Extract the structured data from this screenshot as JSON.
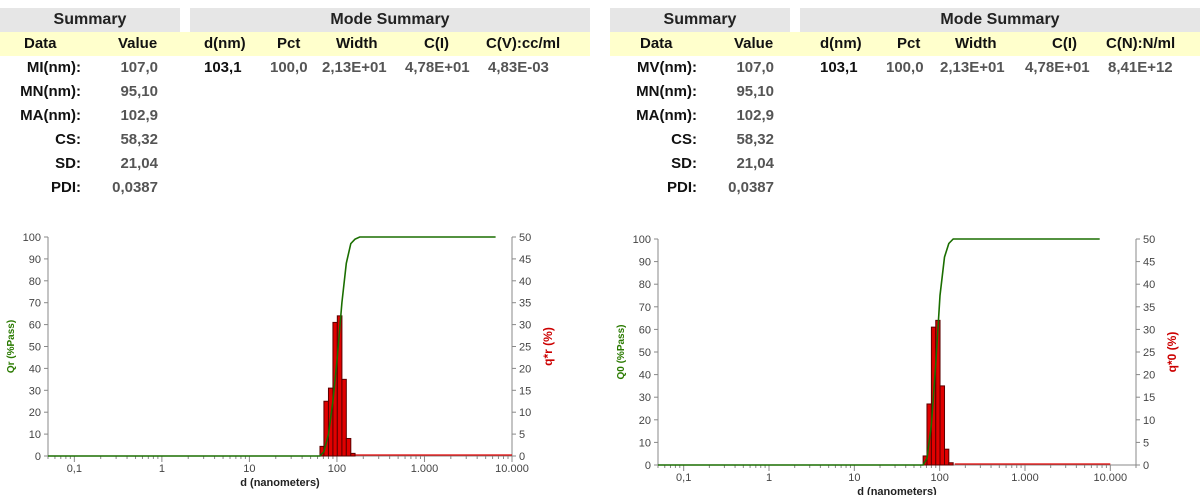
{
  "panels": [
    {
      "summary_title": "Summary",
      "mode_title": "Mode Summary",
      "headers": {
        "data": "Data",
        "value": "Value",
        "d": "d(nm)",
        "pct": "Pct",
        "width": "Width",
        "ci": "C(I)",
        "conc": "C(V):cc/ml"
      },
      "summary_rows": [
        {
          "label": "MI(nm):",
          "value": "107,0"
        },
        {
          "label": "MN(nm):",
          "value": "95,10"
        },
        {
          "label": "MA(nm):",
          "value": "102,9"
        },
        {
          "label": "CS:",
          "value": "58,32"
        },
        {
          "label": "SD:",
          "value": "21,04"
        },
        {
          "label": "PDI:",
          "value": "0,0387"
        }
      ],
      "mode_row": {
        "d": "103,1",
        "pct": "100,0",
        "width": "2,13E+01",
        "ci": "4,78E+01",
        "conc": "4,83E-03"
      }
    },
    {
      "summary_title": "Summary",
      "mode_title": "Mode Summary",
      "headers": {
        "data": "Data",
        "value": "Value",
        "d": "d(nm)",
        "pct": "Pct",
        "width": "Width",
        "ci": "C(I)",
        "conc": "C(N):N/ml"
      },
      "summary_rows": [
        {
          "label": "MV(nm):",
          "value": "107,0"
        },
        {
          "label": "MN(nm):",
          "value": "95,10"
        },
        {
          "label": "MA(nm):",
          "value": "102,9"
        },
        {
          "label": "CS:",
          "value": "58,32"
        },
        {
          "label": "SD:",
          "value": "21,04"
        },
        {
          "label": "PDI:",
          "value": "0,0387"
        }
      ],
      "mode_row": {
        "d": "103,1",
        "pct": "100,0",
        "width": "2,13E+01",
        "ci": "4,78E+01",
        "conc": "8,41E+12"
      }
    }
  ],
  "colors": {
    "cumulative": "#1a6e00",
    "bars": "#e00000",
    "bar_outline": "#5a0000",
    "axis": "#888888",
    "left_label": "#2a7a00",
    "right_label": "#cc0000"
  },
  "chart_data": [
    {
      "type": "bar",
      "xscale": "log",
      "xlim": [
        0.05,
        10000
      ],
      "xlabel": "d (nanometers)",
      "ylabel_left": "Qr (%Pass)",
      "ylabel_right": "q*r (%)",
      "y_left_range": [
        0,
        100
      ],
      "y_right_range": [
        0,
        50
      ],
      "y_left_ticks": [
        "0",
        "10",
        "20",
        "30",
        "40",
        "50",
        "60",
        "70",
        "80",
        "90",
        "100"
      ],
      "y_right_ticks": [
        "0",
        "5",
        "10",
        "15",
        "20",
        "25",
        "30",
        "35",
        "40",
        "45",
        "50"
      ],
      "x_ticks": [
        {
          "value": 0.1,
          "label": "0,1"
        },
        {
          "value": 1,
          "label": "1"
        },
        {
          "value": 10,
          "label": "10"
        },
        {
          "value": 100,
          "label": "100"
        },
        {
          "value": 1000,
          "label": "1.000"
        },
        {
          "value": 10000,
          "label": "10.000"
        }
      ],
      "bars": [
        {
          "x0": 64,
          "x1": 71,
          "value": 2.2
        },
        {
          "x0": 71,
          "x1": 80,
          "value": 12.5
        },
        {
          "x0": 80,
          "x1": 90,
          "value": 15.5
        },
        {
          "x0": 90,
          "x1": 101,
          "value": 30.5
        },
        {
          "x0": 101,
          "x1": 114,
          "value": 32
        },
        {
          "x0": 114,
          "x1": 128,
          "value": 17.5
        },
        {
          "x0": 128,
          "x1": 144,
          "value": 4
        },
        {
          "x0": 144,
          "x1": 161,
          "value": 0.6
        }
      ],
      "cumulative": [
        {
          "x": 0.05,
          "y": 0
        },
        {
          "x": 64,
          "y": 0
        },
        {
          "x": 71,
          "y": 2
        },
        {
          "x": 80,
          "y": 10
        },
        {
          "x": 90,
          "y": 25
        },
        {
          "x": 101,
          "y": 45
        },
        {
          "x": 114,
          "y": 70
        },
        {
          "x": 128,
          "y": 88
        },
        {
          "x": 144,
          "y": 97
        },
        {
          "x": 161,
          "y": 99
        },
        {
          "x": 182,
          "y": 100
        },
        {
          "x": 6500,
          "y": 100
        }
      ],
      "cumulative_zero_to": 10000
    },
    {
      "type": "bar",
      "xscale": "log",
      "xlim": [
        0.05,
        20000
      ],
      "xlabel": "d (nanometers)",
      "ylabel_left": "Q0 (%Pass)",
      "ylabel_right": "q*0 (%)",
      "y_left_range": [
        0,
        100
      ],
      "y_right_range": [
        0,
        50
      ],
      "y_left_ticks": [
        "0",
        "10",
        "20",
        "30",
        "40",
        "50",
        "60",
        "70",
        "80",
        "90",
        "100"
      ],
      "y_right_ticks": [
        "0",
        "5",
        "10",
        "15",
        "20",
        "25",
        "30",
        "35",
        "40",
        "45",
        "50"
      ],
      "x_ticks": [
        {
          "value": 0.1,
          "label": "0,1"
        },
        {
          "value": 1,
          "label": "1"
        },
        {
          "value": 10,
          "label": "10"
        },
        {
          "value": 100,
          "label": "100"
        },
        {
          "value": 1000,
          "label": "1.000"
        },
        {
          "value": 10000,
          "label": "10.000"
        }
      ],
      "bars": [
        {
          "x0": 64,
          "x1": 71,
          "value": 2
        },
        {
          "x0": 71,
          "x1": 80,
          "value": 13.5
        },
        {
          "x0": 80,
          "x1": 90,
          "value": 30.5
        },
        {
          "x0": 90,
          "x1": 101,
          "value": 32
        },
        {
          "x0": 101,
          "x1": 114,
          "value": 17.5
        },
        {
          "x0": 114,
          "x1": 128,
          "value": 3.5
        },
        {
          "x0": 128,
          "x1": 144,
          "value": 0.5
        }
      ],
      "cumulative": [
        {
          "x": 0.05,
          "y": 0
        },
        {
          "x": 64,
          "y": 0
        },
        {
          "x": 71,
          "y": 3
        },
        {
          "x": 80,
          "y": 18
        },
        {
          "x": 90,
          "y": 45
        },
        {
          "x": 101,
          "y": 75
        },
        {
          "x": 114,
          "y": 92
        },
        {
          "x": 128,
          "y": 98
        },
        {
          "x": 144,
          "y": 100
        },
        {
          "x": 7500,
          "y": 100
        }
      ],
      "cumulative_zero_to": 10000
    }
  ]
}
